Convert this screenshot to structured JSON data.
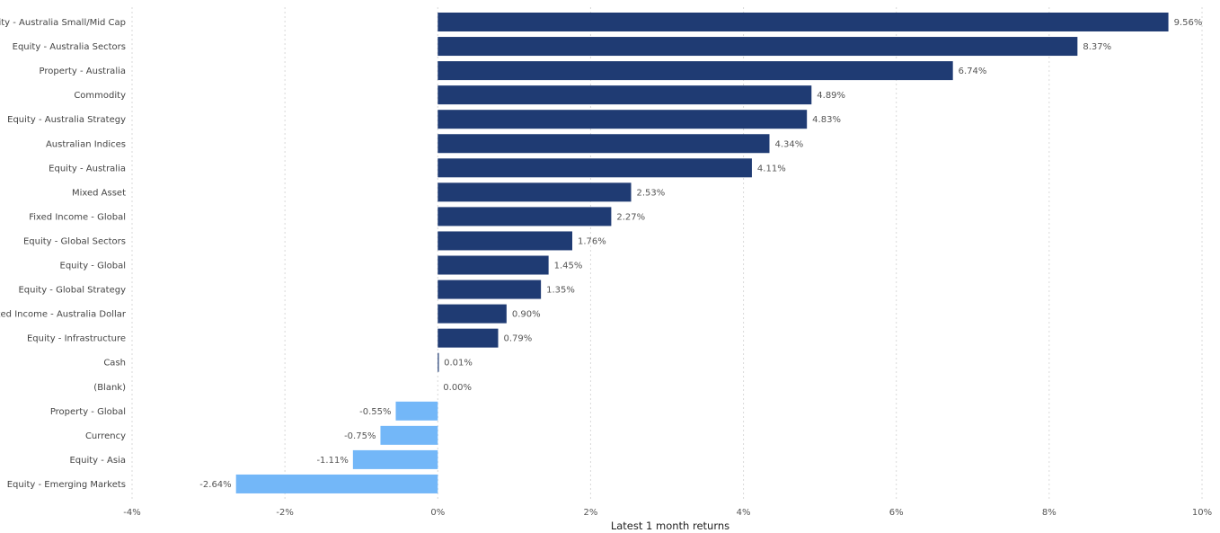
{
  "chart_data": {
    "type": "bar",
    "orientation": "horizontal",
    "categories": [
      "Equity - Australia Small/Mid Cap",
      "Equity - Australia Sectors",
      "Property - Australia",
      "Commodity",
      "Equity - Australia Strategy",
      "Australian Indices",
      "Equity - Australia",
      "Mixed Asset",
      "Fixed Income - Global",
      "Equity - Global Sectors",
      "Equity - Global",
      "Equity - Global Strategy",
      "Fixed Income - Australia Dollar",
      "Equity - Infrastructure",
      "Cash",
      "(Blank)",
      "Property - Global",
      "Currency",
      "Equity - Asia",
      "Equity - Emerging Markets"
    ],
    "values": [
      9.56,
      8.37,
      6.74,
      4.89,
      4.83,
      4.34,
      4.11,
      2.53,
      2.27,
      1.76,
      1.45,
      1.35,
      0.9,
      0.79,
      0.01,
      0.0,
      -0.55,
      -0.75,
      -1.11,
      -2.64
    ],
    "value_labels": [
      "9.56%",
      "8.37%",
      "6.74%",
      "4.89%",
      "4.83%",
      "4.34%",
      "4.11%",
      "2.53%",
      "2.27%",
      "1.76%",
      "1.45%",
      "1.35%",
      "0.90%",
      "0.79%",
      "0.01%",
      "0.00%",
      "-0.55%",
      "-0.75%",
      "-1.11%",
      "-2.64%"
    ],
    "xlabel": "Latest 1 month returns",
    "ylabel": "",
    "title": "",
    "xlim": [
      -4,
      10
    ],
    "xticks": [
      -4,
      -2,
      0,
      2,
      4,
      6,
      8,
      10
    ],
    "xtick_labels": [
      "-4%",
      "-2%",
      "0%",
      "2%",
      "4%",
      "6%",
      "8%",
      "10%"
    ],
    "grid": "vertical",
    "colors": {
      "positive": "#1f3b73",
      "negative": "#73b7f8"
    }
  }
}
